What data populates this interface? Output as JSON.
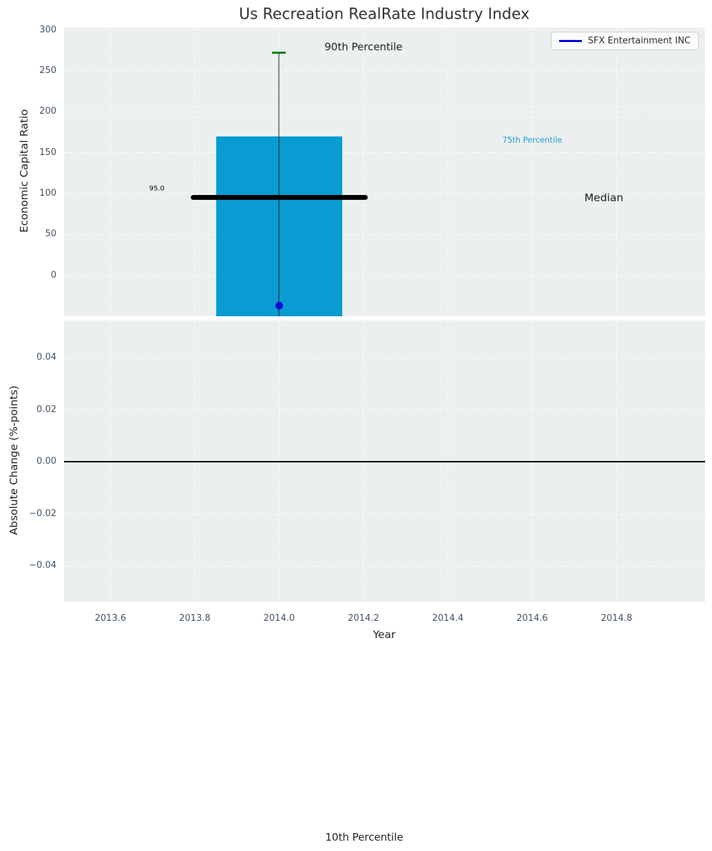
{
  "colors": {
    "axes_bg": "#ECEFF0",
    "grid": "#FFFFFF",
    "bar": "#099CD2",
    "median": "#000000",
    "p90_tick": "#0C800C",
    "whisker": "rgba(0,0,0,0.45)",
    "company_dot": "#0D0DD6",
    "legend_line": "#0000DC",
    "tick_text": "#3A4D61",
    "p75_text": "#1899CC"
  },
  "legend": {
    "items": [
      {
        "label": "SFX Entertainment INC",
        "color": "#0000DC"
      }
    ]
  },
  "chart_data": [
    {
      "type": "bar",
      "title": "Us Recreation RealRate Industry Index",
      "ylabel": "Economic Capital Ratio",
      "xlim": [
        2013.49,
        2015.01
      ],
      "ylim": [
        -50,
        303
      ],
      "grid": true,
      "legend_position": "upper right",
      "yticks": [
        300,
        250,
        200,
        150,
        100,
        50,
        0
      ],
      "ytick_labels": [
        "300",
        "250",
        "200",
        "150",
        "100",
        "50",
        "0"
      ],
      "xticks": [
        2013.6,
        2013.8,
        2014.0,
        2014.2,
        2014.4,
        2014.6,
        2014.8
      ],
      "series": {
        "year": 2014.0,
        "p90": 272,
        "p75": 170,
        "median": 95.0,
        "p10": "below axis (clipped)",
        "company": {
          "name": "SFX Entertainment INC",
          "value": -37
        }
      },
      "bar_x": [
        2013.85,
        2014.15
      ],
      "median_x": [
        2013.79,
        2014.21
      ],
      "annotations": [
        {
          "name": "annotation-90th-percentile",
          "text": "90th Percentile",
          "x": 2014.2,
          "y": 279,
          "size": 15,
          "color": "#1a1a1a"
        },
        {
          "name": "annotation-75th-percentile",
          "text": "75th Percentile",
          "x": 2014.6,
          "y": 166,
          "size": 11.5,
          "color": "#1899CC"
        },
        {
          "name": "annotation-median",
          "text": "Median",
          "x": 2014.77,
          "y": 95,
          "size": 15.5,
          "color": "#1a1a1a"
        },
        {
          "name": "annotation-median-value",
          "text": "95.0",
          "x": 2013.71,
          "y": 106,
          "size": 10,
          "color": "#000000"
        }
      ],
      "annotations_outside": [
        {
          "text": "10th Percentile"
        }
      ]
    },
    {
      "type": "line",
      "ylabel": "Absolute Change (%-points)",
      "xlabel": "Year",
      "xlim": [
        2013.49,
        2015.01
      ],
      "ylim": [
        -0.054,
        0.0543
      ],
      "grid": true,
      "yticks": [
        0.04,
        0.02,
        0.0,
        -0.02,
        -0.04
      ],
      "ytick_labels": [
        "0.04",
        "0.02",
        "0.00",
        "−0.02",
        "−0.04"
      ],
      "xticks": [
        2013.6,
        2013.8,
        2014.0,
        2014.2,
        2014.4,
        2014.6,
        2014.8
      ],
      "xtick_labels": [
        "2013.6",
        "2013.8",
        "2014.0",
        "2014.2",
        "2014.4",
        "2014.6",
        "2014.8"
      ],
      "zero_line": 0.0
    }
  ]
}
